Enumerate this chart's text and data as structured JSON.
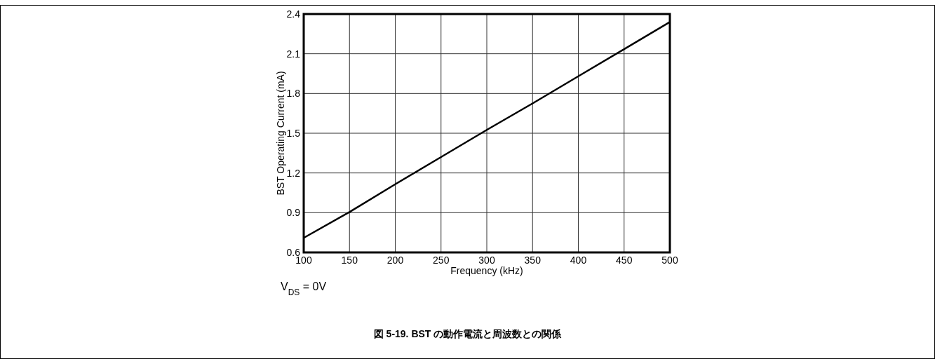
{
  "chart_data": {
    "type": "line",
    "title": "図 5-19. BST の動作電流と周波数との関係",
    "xlabel": "Frequency (kHz)",
    "ylabel": "BST Operating Current (mA)",
    "x": [
      100,
      150,
      200,
      250,
      300,
      350,
      400,
      450,
      500
    ],
    "series": [
      {
        "color": "#000000",
        "values": [
          0.71,
          0.905,
          1.115,
          1.32,
          1.525,
          1.725,
          1.93,
          2.135,
          2.34
        ]
      }
    ],
    "xlim": [
      100,
      500
    ],
    "xticks": [
      100,
      150,
      200,
      250,
      300,
      350,
      400,
      450,
      500
    ],
    "ylim": [
      0.6,
      2.4
    ],
    "yticks": [
      0.6,
      0.9,
      1.2,
      1.5,
      1.8,
      2.1,
      2.4
    ],
    "grid": true,
    "marker": "none",
    "line_style": "solid",
    "annotations": [
      "V$_{DS}$ = 0V"
    ]
  }
}
